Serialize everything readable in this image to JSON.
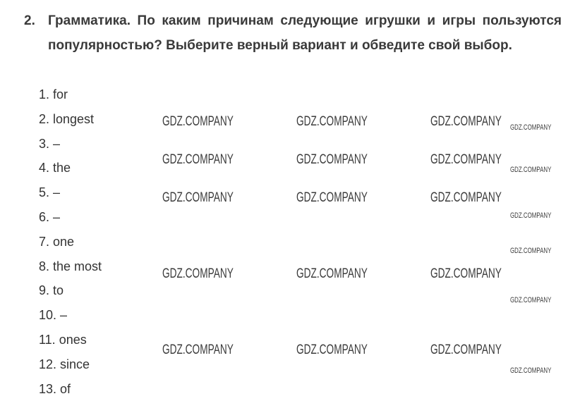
{
  "exercise": {
    "number": "2.",
    "instruction": "Грамматика. По каким причинам следующие игрушки и игры пользуются популярностью? Выберите верный вариант и обведите свой выбор."
  },
  "answers": [
    "1. for",
    "2. longest",
    "3. –",
    "4. the",
    "5. –",
    "6. –",
    "7. one",
    "8. the most",
    "9. to",
    "10. –",
    "11. ones",
    "12. since",
    "13. of"
  ],
  "watermark": "GDZ.COMPANY"
}
